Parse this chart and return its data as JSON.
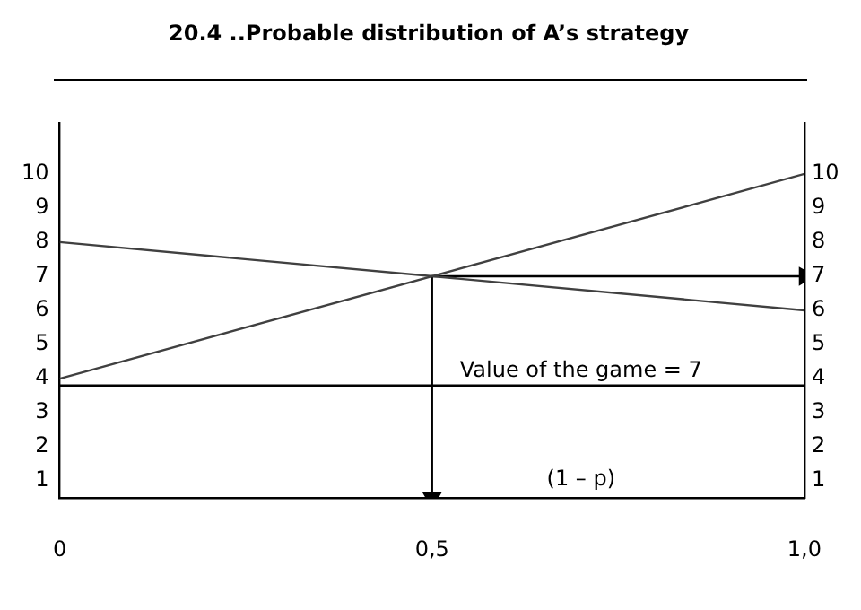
{
  "chart_data": {
    "type": "line",
    "title": "20.4 ..Probable distribution of A’s strategy",
    "xlabel": "(1 – p)",
    "xlim": [
      0,
      1
    ],
    "xticks": [
      0,
      {
        "value": 0.5,
        "label": "0,5"
      },
      {
        "value": 1,
        "label": "1,0"
      }
    ],
    "ylim": [
      0.5,
      11.5
    ],
    "yticks": [
      1,
      2,
      3,
      4,
      5,
      6,
      7,
      8,
      9,
      10
    ],
    "y2lim": [
      0.5,
      11.5
    ],
    "y2ticks": [
      1,
      2,
      3,
      4,
      5,
      6,
      7,
      8,
      9,
      10
    ],
    "grid": false,
    "legend": false,
    "marker": "none",
    "line_style": "solid",
    "series": [
      {
        "color": "#404040",
        "x": [
          0,
          1
        ],
        "values": [
          4,
          10
        ]
      },
      {
        "color": "#404040",
        "x": [
          0,
          1
        ],
        "values": [
          8,
          6
        ]
      },
      {
        "color": "#000000",
        "x": [
          0.5,
          0.5
        ],
        "values": [
          7,
          0.5
        ],
        "marker": "triangle"
      },
      {
        "color": "#000000",
        "x": [
          0.5,
          1
        ],
        "values": [
          7,
          7
        ],
        "marker": "triangle"
      }
    ],
    "ref_lines": [
      {
        "axis": "y",
        "value": 3.8,
        "color": "#000000",
        "line_style": "solid"
      }
    ],
    "annotations": [
      "Value of the game = 7"
    ]
  }
}
